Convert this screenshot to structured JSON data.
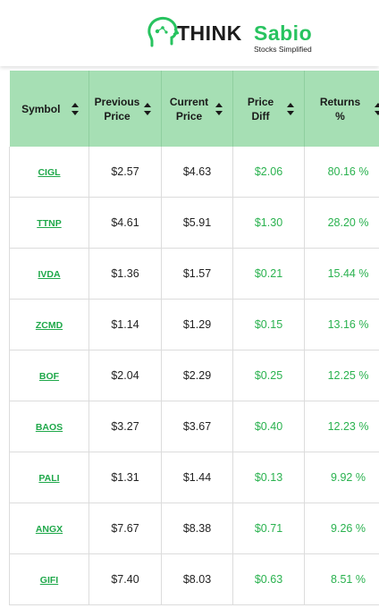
{
  "brand": {
    "think": "THINK",
    "sabio": "Sabio",
    "tagline": "Stocks Simplified"
  },
  "table": {
    "headers": [
      {
        "line1": "Symbol",
        "line2": ""
      },
      {
        "line1": "Previous",
        "line2": "Price"
      },
      {
        "line1": "Current",
        "line2": "Price"
      },
      {
        "line1": "Price",
        "line2": "Diff"
      },
      {
        "line1": "Returns",
        "line2": "%"
      }
    ],
    "rows": [
      {
        "symbol": "CIGL",
        "previous": "$2.57",
        "current": "$4.63",
        "diff": "$2.06",
        "returns": "80.16 %"
      },
      {
        "symbol": "TTNP",
        "previous": "$4.61",
        "current": "$5.91",
        "diff": "$1.30",
        "returns": "28.20 %"
      },
      {
        "symbol": "IVDA",
        "previous": "$1.36",
        "current": "$1.57",
        "diff": "$0.21",
        "returns": "15.44 %"
      },
      {
        "symbol": "ZCMD",
        "previous": "$1.14",
        "current": "$1.29",
        "diff": "$0.15",
        "returns": "13.16 %"
      },
      {
        "symbol": "BOF",
        "previous": "$2.04",
        "current": "$2.29",
        "diff": "$0.25",
        "returns": "12.25 %"
      },
      {
        "symbol": "BAOS",
        "previous": "$3.27",
        "current": "$3.67",
        "diff": "$0.40",
        "returns": "12.23 %"
      },
      {
        "symbol": "PALI",
        "previous": "$1.31",
        "current": "$1.44",
        "diff": "$0.13",
        "returns": "9.92 %"
      },
      {
        "symbol": "ANGX",
        "previous": "$7.67",
        "current": "$8.38",
        "diff": "$0.71",
        "returns": "9.26 %"
      },
      {
        "symbol": "GIFI",
        "previous": "$7.40",
        "current": "$8.03",
        "diff": "$0.63",
        "returns": "8.51 %"
      }
    ]
  },
  "colors": {
    "header_bg": "#a6dfb4",
    "accent_green": "#2ab24f",
    "link_green": "#1fa84a"
  }
}
